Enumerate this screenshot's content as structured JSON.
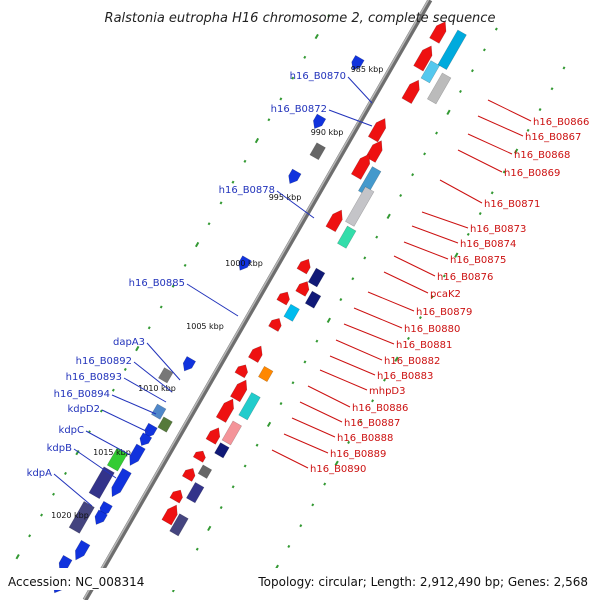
{
  "title": "Ralstonia eutropha H16 chromosome 2, complete sequence",
  "footer": {
    "accession": "Accession: NC_008314",
    "topology": "Topology: circular; Length: 2,912,490 bp; Genes: 2,568"
  },
  "ticks": [
    "985 kbp",
    "990 kbp",
    "995 kbp",
    "1000 kbp",
    "1005 kbp",
    "1010 kbp",
    "1015 kbp",
    "1020 kbp"
  ],
  "labels_left": [
    "h16_B0870",
    "h16_B0872",
    "h16_B0878",
    "h16_B0885",
    "dapA3",
    "h16_B0892",
    "h16_B0893",
    "h16_B0894",
    "kdpD2",
    "kdpC",
    "kdpB",
    "kdpA"
  ],
  "labels_right": [
    "h16_B0866",
    "h16_B0867",
    "h16_B0868",
    "h16_B0869",
    "h16_B0871",
    "h16_B0873",
    "h16_B0874",
    "h16_B0875",
    "h16_B0876",
    "pcaK2",
    "h16_B0879",
    "h16_B0880",
    "h16_B0881",
    "h16_B0882",
    "h16_B0883",
    "mhpD3",
    "h16_B0886",
    "h16_B0887",
    "h16_B0888",
    "h16_B0889",
    "h16_B0890"
  ],
  "colors": {
    "forward_gene": "#ee1111",
    "reverse_gene": "#1133dd",
    "backbone": "#888888",
    "gc_dots": "#339933",
    "left_label": "#2233bb",
    "right_label": "#cc1111"
  }
}
